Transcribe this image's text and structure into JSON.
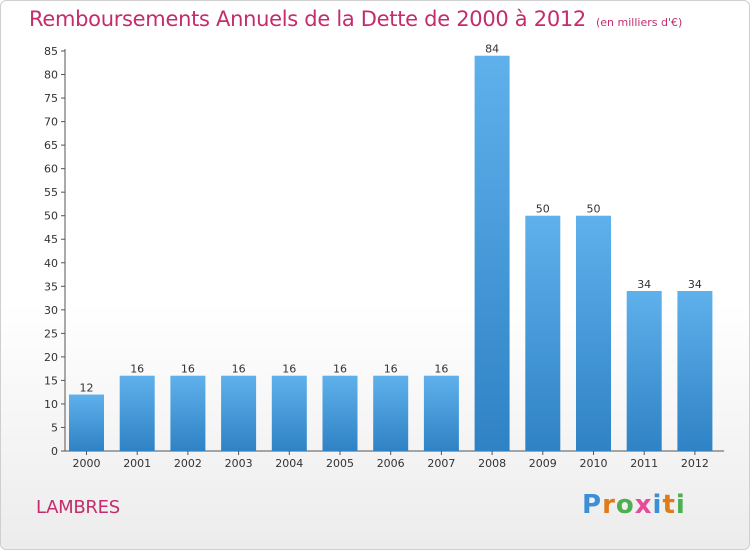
{
  "title": "Remboursements Annuels de la Dette de 2000 à 2012",
  "subtitle": "(en milliers d'€)",
  "footer_left": "LAMBRES",
  "brand": {
    "text": "Proxiti",
    "letter_colors": [
      "#3a8fd8",
      "#e07b1a",
      "#4caf50",
      "#e84a9a",
      "#3a8fd8",
      "#e07b1a",
      "#4caf50"
    ]
  },
  "colors": {
    "bar_light": "#5fb1ec",
    "bar_dark": "#2f82c4",
    "title": "#c42c6d"
  },
  "chart_data": {
    "type": "bar",
    "title": "Remboursements Annuels de la Dette de 2000 à 2012",
    "subtitle": "(en milliers d'€)",
    "categories": [
      "2000",
      "2001",
      "2002",
      "2003",
      "2004",
      "2005",
      "2006",
      "2007",
      "2008",
      "2009",
      "2010",
      "2011",
      "2012"
    ],
    "values": [
      12,
      16,
      16,
      16,
      16,
      16,
      16,
      16,
      84,
      50,
      50,
      34,
      34
    ],
    "ylim": [
      0,
      85
    ],
    "yticks": [
      0,
      5,
      10,
      15,
      20,
      25,
      30,
      35,
      40,
      45,
      50,
      55,
      60,
      65,
      70,
      75,
      80,
      85
    ],
    "xlabel": "",
    "ylabel": "",
    "grid": false,
    "data_labels": true
  }
}
